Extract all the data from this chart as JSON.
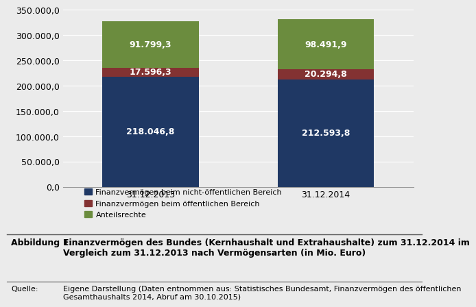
{
  "categories": [
    "31.12.2013",
    "31.12.2014"
  ],
  "series": [
    {
      "label": "Finanzvermögen beim nicht-öffentlichen Bereich",
      "values": [
        218046.8,
        212593.8
      ],
      "color": "#1F3864"
    },
    {
      "label": "Finanzvermögen beim öffentlichen Bereich",
      "values": [
        17596.3,
        20294.8
      ],
      "color": "#833232"
    },
    {
      "label": "Anteilsrechte",
      "values": [
        91799.3,
        98491.9
      ],
      "color": "#6B8C3E"
    }
  ],
  "ylim": [
    0,
    350000
  ],
  "yticks": [
    0,
    50000,
    100000,
    150000,
    200000,
    250000,
    300000,
    350000
  ],
  "bar_width": 0.55,
  "bar_positions": [
    1,
    2
  ],
  "background_color": "#EBEBEB",
  "plot_bg_color": "#EBEBEB",
  "caption_title": "Abbildung 1:",
  "caption_text": "Finanzvermögen des Bundes (Kernhaushalt und Extrahaushalte) zum 31.12.2014 im\nVergleich zum 31.12.2013 nach Vermögensarten (in Mio. Euro)",
  "source_title": "Quelle:",
  "source_text": "Eigene Darstellung (Daten entnommen aus: Statistisches Bundesamt, Finanzvermögen des öffentlichen\nGesamthaushalts 2014, Abruf am 30.10.2015)",
  "tick_fontsize": 9,
  "legend_fontsize": 8,
  "annotation_fontsize": 9
}
